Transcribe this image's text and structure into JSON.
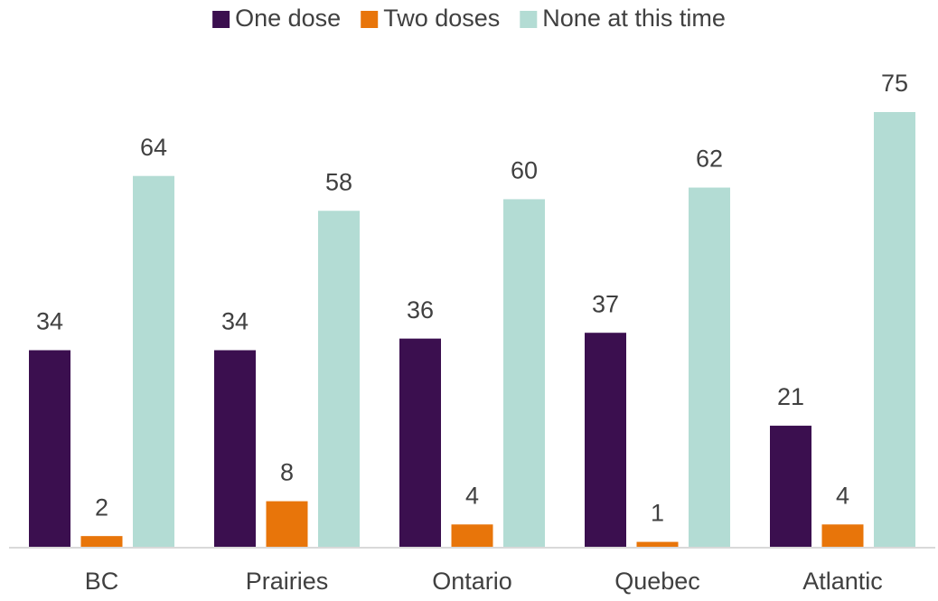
{
  "chart_data": {
    "type": "bar",
    "categories": [
      "BC",
      "Prairies",
      "Ontario",
      "Quebec",
      "Atlantic"
    ],
    "series": [
      {
        "name": "One dose",
        "color": "#3b0f4f",
        "values": [
          34,
          34,
          36,
          37,
          21
        ]
      },
      {
        "name": "Two doses",
        "color": "#e8750a",
        "values": [
          2,
          8,
          4,
          1,
          4
        ]
      },
      {
        "name": "None at this time",
        "color": "#b3dcd4",
        "values": [
          64,
          58,
          60,
          62,
          75
        ]
      }
    ],
    "legend": "top",
    "grid": false
  }
}
